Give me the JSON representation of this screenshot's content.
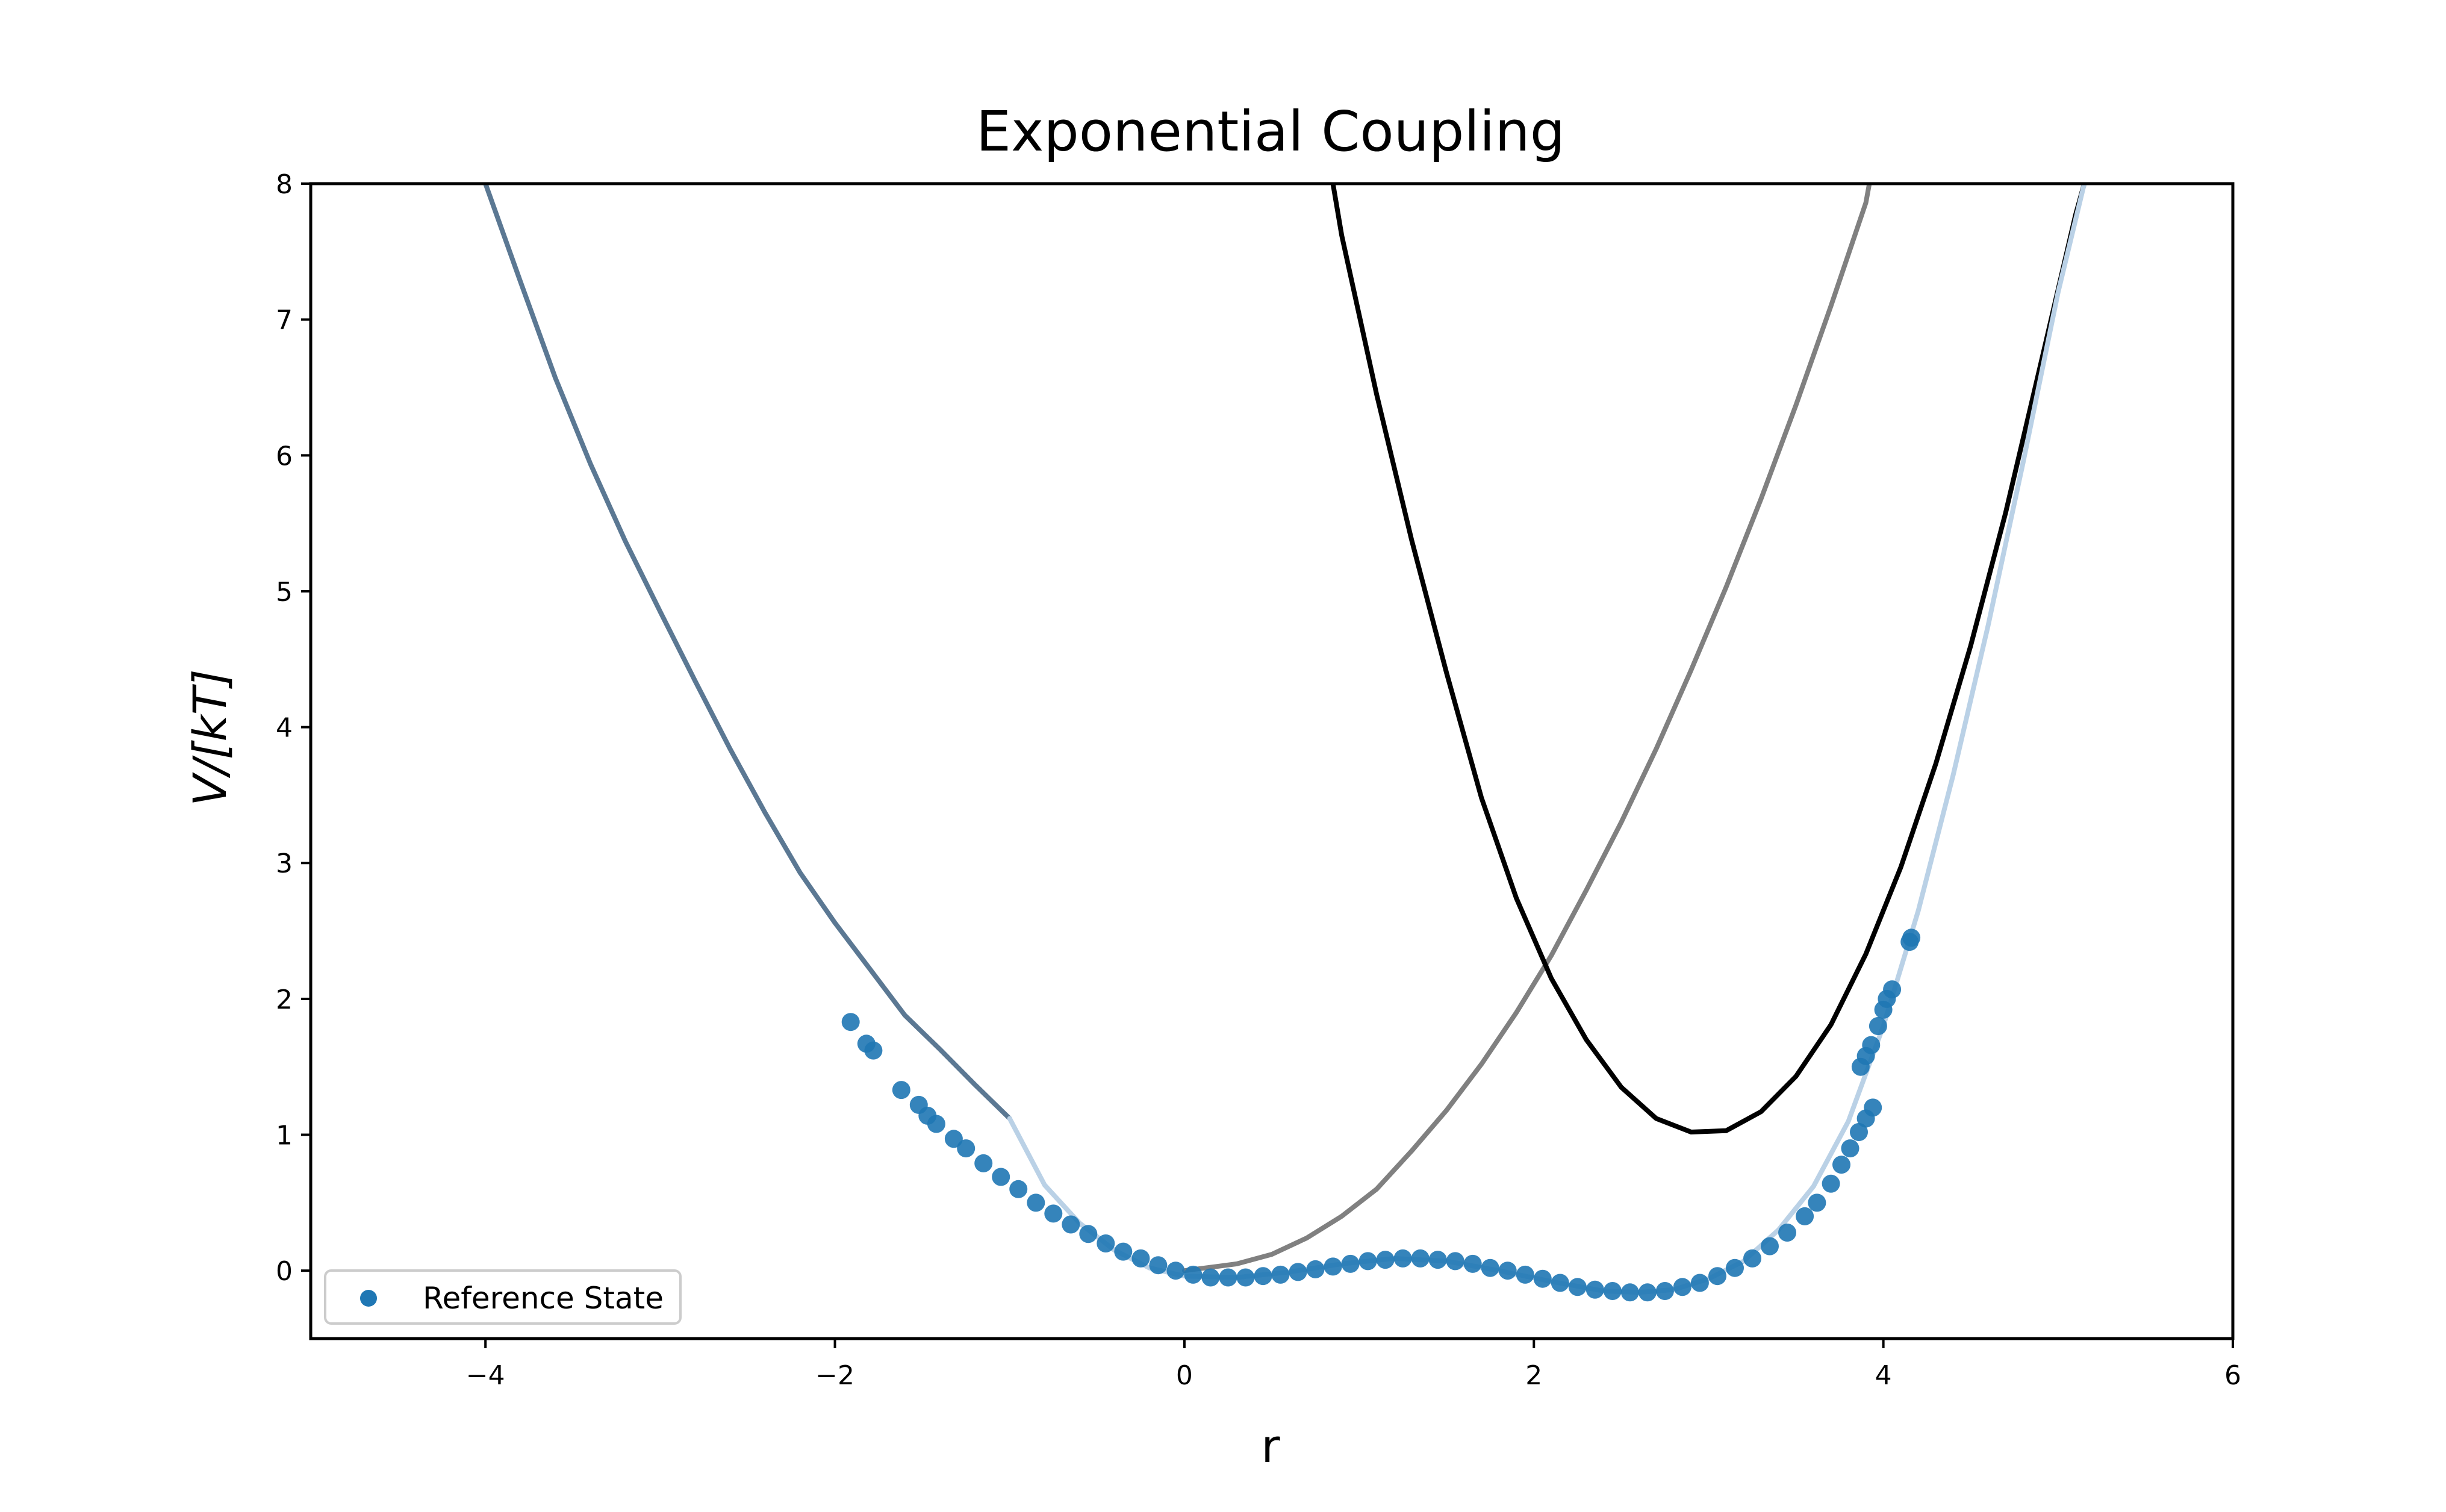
{
  "chart_data": {
    "type": "line",
    "title": "Exponential Coupling",
    "xlabel": "r",
    "ylabel": "V/[kT]",
    "xlim": [
      -5,
      6
    ],
    "ylim": [
      -0.5,
      8
    ],
    "x_ticks": [
      -4,
      -2,
      0,
      2,
      4,
      6
    ],
    "x_tick_labels": [
      "−4",
      "−2",
      "0",
      "2",
      "4",
      "6"
    ],
    "y_ticks": [
      0,
      1,
      2,
      3,
      4,
      5,
      6,
      7,
      8
    ],
    "y_tick_labels": [
      "0",
      "1",
      "2",
      "3",
      "4",
      "5",
      "6",
      "7",
      "8"
    ],
    "grid": false,
    "legend": {
      "placement": "lower-left",
      "entries": [
        {
          "label": "Reference State",
          "marker": "circle",
          "color": "#1f77b4"
        }
      ]
    },
    "series": [
      {
        "style": "line",
        "color": "#5b7893",
        "points": [
          [
            -4.0,
            8.0
          ],
          [
            -3.8,
            7.28
          ],
          [
            -3.6,
            6.57
          ],
          [
            -3.4,
            5.94
          ],
          [
            -3.2,
            5.37
          ],
          [
            -3.0,
            4.85
          ],
          [
            -2.8,
            4.34
          ],
          [
            -2.6,
            3.84
          ],
          [
            -2.4,
            3.37
          ],
          [
            -2.2,
            2.93
          ],
          [
            -2.0,
            2.56
          ],
          [
            -1.8,
            2.22
          ],
          [
            -1.6,
            1.88
          ],
          [
            -1.4,
            1.63
          ],
          [
            -1.2,
            1.37
          ],
          [
            -1.0,
            1.12
          ]
        ]
      },
      {
        "style": "line",
        "color": "#808080",
        "points": [
          [
            0.0,
            0.0
          ],
          [
            0.3,
            0.05
          ],
          [
            0.5,
            0.12
          ],
          [
            0.7,
            0.24
          ],
          [
            0.9,
            0.4
          ],
          [
            1.1,
            0.6
          ],
          [
            1.3,
            0.88
          ],
          [
            1.5,
            1.18
          ],
          [
            1.7,
            1.52
          ],
          [
            1.9,
            1.9
          ],
          [
            2.1,
            2.32
          ],
          [
            2.3,
            2.8
          ],
          [
            2.5,
            3.3
          ],
          [
            2.7,
            3.84
          ],
          [
            2.9,
            4.42
          ],
          [
            3.1,
            5.03
          ],
          [
            3.3,
            5.68
          ],
          [
            3.5,
            6.37
          ],
          [
            3.7,
            7.1
          ],
          [
            3.9,
            7.86
          ],
          [
            3.92,
            8.0
          ]
        ]
      },
      {
        "style": "line",
        "color": "#000000",
        "points": [
          [
            0.85,
            8.0
          ],
          [
            0.9,
            7.62
          ],
          [
            1.1,
            6.45
          ],
          [
            1.3,
            5.38
          ],
          [
            1.5,
            4.4
          ],
          [
            1.7,
            3.48
          ],
          [
            1.9,
            2.74
          ],
          [
            2.1,
            2.15
          ],
          [
            2.3,
            1.7
          ],
          [
            2.5,
            1.35
          ],
          [
            2.7,
            1.12
          ],
          [
            2.9,
            1.02
          ],
          [
            3.1,
            1.03
          ],
          [
            3.3,
            1.17
          ],
          [
            3.5,
            1.43
          ],
          [
            3.7,
            1.81
          ],
          [
            3.9,
            2.33
          ],
          [
            4.1,
            2.97
          ],
          [
            4.3,
            3.73
          ],
          [
            4.5,
            4.6
          ],
          [
            4.7,
            5.58
          ],
          [
            4.9,
            6.67
          ],
          [
            5.1,
            7.77
          ],
          [
            5.15,
            8.0
          ]
        ]
      },
      {
        "style": "line",
        "color": "#bad1e6",
        "points": [
          [
            -1.0,
            1.12
          ],
          [
            -0.8,
            0.63
          ],
          [
            -0.6,
            0.35
          ],
          [
            -0.4,
            0.15
          ],
          [
            -0.2,
            0.02
          ],
          [
            0.0,
            -0.04
          ],
          [
            0.3,
            -0.05
          ],
          [
            0.6,
            -0.01
          ],
          [
            0.9,
            0.05
          ],
          [
            1.2,
            0.09
          ],
          [
            1.5,
            0.07
          ],
          [
            1.8,
            0.0
          ],
          [
            2.1,
            -0.08
          ],
          [
            2.4,
            -0.15
          ],
          [
            2.6,
            -0.16
          ],
          [
            2.8,
            -0.14
          ],
          [
            3.0,
            -0.06
          ],
          [
            3.2,
            0.07
          ],
          [
            3.4,
            0.3
          ],
          [
            3.6,
            0.62
          ],
          [
            3.8,
            1.1
          ],
          [
            4.0,
            1.8
          ],
          [
            4.2,
            2.65
          ],
          [
            4.4,
            3.65
          ],
          [
            4.6,
            4.75
          ],
          [
            4.8,
            5.95
          ],
          [
            5.0,
            7.2
          ],
          [
            5.15,
            8.0
          ]
        ]
      }
    ],
    "scatter": {
      "name": "Reference State",
      "color": "#1f77b4",
      "points": [
        [
          -1.91,
          1.83
        ],
        [
          -1.82,
          1.67
        ],
        [
          -1.78,
          1.62
        ],
        [
          -1.62,
          1.33
        ],
        [
          -1.52,
          1.22
        ],
        [
          -1.47,
          1.14
        ],
        [
          -1.42,
          1.08
        ],
        [
          -1.32,
          0.97
        ],
        [
          -1.25,
          0.9
        ],
        [
          -1.15,
          0.79
        ],
        [
          -1.05,
          0.69
        ],
        [
          -0.95,
          0.6
        ],
        [
          -0.85,
          0.5
        ],
        [
          -0.75,
          0.42
        ],
        [
          -0.65,
          0.34
        ],
        [
          -0.55,
          0.27
        ],
        [
          -0.45,
          0.2
        ],
        [
          -0.35,
          0.14
        ],
        [
          -0.25,
          0.09
        ],
        [
          -0.15,
          0.04
        ],
        [
          -0.05,
          0.0
        ],
        [
          0.05,
          -0.03
        ],
        [
          0.15,
          -0.05
        ],
        [
          0.25,
          -0.05
        ],
        [
          0.35,
          -0.05
        ],
        [
          0.45,
          -0.04
        ],
        [
          0.55,
          -0.03
        ],
        [
          0.65,
          -0.01
        ],
        [
          0.75,
          0.01
        ],
        [
          0.85,
          0.03
        ],
        [
          0.95,
          0.05
        ],
        [
          1.05,
          0.07
        ],
        [
          1.15,
          0.08
        ],
        [
          1.25,
          0.09
        ],
        [
          1.35,
          0.09
        ],
        [
          1.45,
          0.08
        ],
        [
          1.55,
          0.07
        ],
        [
          1.65,
          0.05
        ],
        [
          1.75,
          0.02
        ],
        [
          1.85,
          0.0
        ],
        [
          1.95,
          -0.03
        ],
        [
          2.05,
          -0.06
        ],
        [
          2.15,
          -0.09
        ],
        [
          2.25,
          -0.12
        ],
        [
          2.35,
          -0.14
        ],
        [
          2.45,
          -0.15
        ],
        [
          2.55,
          -0.16
        ],
        [
          2.65,
          -0.16
        ],
        [
          2.75,
          -0.15
        ],
        [
          2.85,
          -0.12
        ],
        [
          2.95,
          -0.09
        ],
        [
          3.05,
          -0.04
        ],
        [
          3.15,
          0.02
        ],
        [
          3.25,
          0.09
        ],
        [
          3.35,
          0.18
        ],
        [
          3.45,
          0.28
        ],
        [
          3.55,
          0.4
        ],
        [
          3.62,
          0.5
        ],
        [
          3.7,
          0.64
        ],
        [
          3.76,
          0.78
        ],
        [
          3.81,
          0.9
        ],
        [
          3.86,
          1.02
        ],
        [
          3.9,
          1.12
        ],
        [
          3.94,
          1.2
        ],
        [
          3.87,
          1.5
        ],
        [
          3.9,
          1.58
        ],
        [
          3.93,
          1.66
        ],
        [
          3.97,
          1.8
        ],
        [
          4.0,
          1.92
        ],
        [
          4.02,
          2.0
        ],
        [
          4.05,
          2.07
        ],
        [
          4.15,
          2.42
        ],
        [
          4.16,
          2.45
        ]
      ]
    }
  }
}
